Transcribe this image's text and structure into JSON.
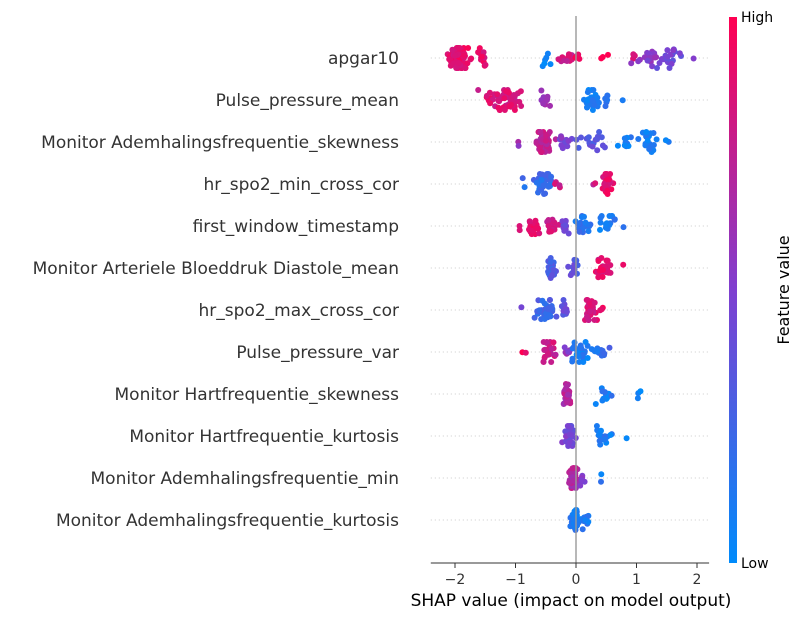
{
  "chart_data": {
    "type": "scatter",
    "subtype": "shap-beeswarm",
    "xlabel": "SHAP value (impact on model output)",
    "xlim": [
      -2.4,
      2.2
    ],
    "xticks": [
      {
        "value": -2,
        "label": "−2"
      },
      {
        "value": -1,
        "label": "−1"
      },
      {
        "value": 0,
        "label": "0"
      },
      {
        "value": 1,
        "label": "1"
      },
      {
        "value": 2,
        "label": "2"
      }
    ],
    "colorbar": {
      "title": "Feature value",
      "high_label": "High",
      "low_label": "Low",
      "high_color": "#ff0052",
      "mid_color": "#7f3fd0",
      "low_color": "#008bfb"
    },
    "features": [
      {
        "name": "apgar10",
        "clusters": [
          {
            "center": -1.95,
            "spread": 0.15,
            "count": 80,
            "value": 0.9
          },
          {
            "center": -1.55,
            "spread": 0.08,
            "count": 14,
            "value": 0.88
          },
          {
            "center": -0.5,
            "spread": 0.06,
            "count": 6,
            "value": 0.05
          },
          {
            "center": -0.15,
            "spread": 0.15,
            "count": 12,
            "value": 0.8
          },
          {
            "center": 0.05,
            "spread": 0.1,
            "count": 6,
            "value": 0.92
          },
          {
            "center": 0.45,
            "spread": 0.05,
            "count": 3,
            "value": 0.95
          },
          {
            "center": 0.95,
            "spread": 0.05,
            "count": 4,
            "value": 0.9
          },
          {
            "center": 1.2,
            "spread": 0.15,
            "count": 18,
            "value": 0.55
          },
          {
            "center": 1.55,
            "spread": 0.15,
            "count": 22,
            "value": 0.45
          },
          {
            "center": 1.95,
            "spread": 0.03,
            "count": 1,
            "value": 0.5
          }
        ]
      },
      {
        "name": "Pulse_pressure_mean",
        "clusters": [
          {
            "center": -1.45,
            "spread": 0.06,
            "count": 4,
            "value": 0.9
          },
          {
            "center": -1.15,
            "spread": 0.25,
            "count": 55,
            "value": 0.85
          },
          {
            "center": -0.55,
            "spread": 0.1,
            "count": 10,
            "value": 0.65
          },
          {
            "center": 0.25,
            "spread": 0.1,
            "count": 38,
            "value": 0.1
          },
          {
            "center": 0.5,
            "spread": 0.06,
            "count": 6,
            "value": 0.15
          },
          {
            "center": 0.78,
            "spread": 0.02,
            "count": 1,
            "value": 0.05
          }
        ]
      },
      {
        "name": "Monitor Ademhalingsfrequentie_skewness",
        "clusters": [
          {
            "center": -0.95,
            "spread": 0.03,
            "count": 2,
            "value": 0.6
          },
          {
            "center": -0.55,
            "spread": 0.12,
            "count": 55,
            "value": 0.75
          },
          {
            "center": -0.2,
            "spread": 0.1,
            "count": 14,
            "value": 0.5
          },
          {
            "center": 0.3,
            "spread": 0.25,
            "count": 18,
            "value": 0.35
          },
          {
            "center": 0.85,
            "spread": 0.1,
            "count": 10,
            "value": 0.1
          },
          {
            "center": 1.2,
            "spread": 0.15,
            "count": 22,
            "value": 0.08
          },
          {
            "center": 1.52,
            "spread": 0.03,
            "count": 2,
            "value": 0.1
          }
        ]
      },
      {
        "name": "hr_spo2_min_cross_cor",
        "clusters": [
          {
            "center": -0.85,
            "spread": 0.03,
            "count": 1,
            "value": 0.2
          },
          {
            "center": -0.55,
            "spread": 0.15,
            "count": 45,
            "value": 0.2
          },
          {
            "center": -0.35,
            "spread": 0.06,
            "count": 4,
            "value": 0.8
          },
          {
            "center": 0.3,
            "spread": 0.06,
            "count": 2,
            "value": 0.8
          },
          {
            "center": 0.5,
            "spread": 0.1,
            "count": 30,
            "value": 0.88
          }
        ]
      },
      {
        "name": "first_window_timestamp",
        "clusters": [
          {
            "center": -0.95,
            "spread": 0.03,
            "count": 2,
            "value": 0.9
          },
          {
            "center": -0.7,
            "spread": 0.1,
            "count": 20,
            "value": 0.9
          },
          {
            "center": -0.4,
            "spread": 0.08,
            "count": 18,
            "value": 0.8
          },
          {
            "center": -0.18,
            "spread": 0.06,
            "count": 14,
            "value": 0.45
          },
          {
            "center": 0.1,
            "spread": 0.12,
            "count": 22,
            "value": 0.15
          },
          {
            "center": 0.5,
            "spread": 0.12,
            "count": 16,
            "value": 0.1
          },
          {
            "center": 0.78,
            "spread": 0.02,
            "count": 1,
            "value": 0.1
          }
        ]
      },
      {
        "name": "Monitor Arteriele Bloeddruk Diastole_mean",
        "clusters": [
          {
            "center": -0.4,
            "spread": 0.1,
            "count": 30,
            "value": 0.3
          },
          {
            "center": -0.05,
            "spread": 0.08,
            "count": 14,
            "value": 0.35
          },
          {
            "center": 0.45,
            "spread": 0.12,
            "count": 28,
            "value": 0.88
          },
          {
            "center": 0.78,
            "spread": 0.02,
            "count": 1,
            "value": 0.9
          }
        ]
      },
      {
        "name": "hr_spo2_max_cross_cor",
        "clusters": [
          {
            "center": -0.9,
            "spread": 0.03,
            "count": 1,
            "value": 0.4
          },
          {
            "center": -0.5,
            "spread": 0.15,
            "count": 35,
            "value": 0.25
          },
          {
            "center": -0.2,
            "spread": 0.08,
            "count": 10,
            "value": 0.4
          },
          {
            "center": 0.25,
            "spread": 0.12,
            "count": 32,
            "value": 0.85
          },
          {
            "center": 0.45,
            "spread": 0.03,
            "count": 2,
            "value": 0.9
          }
        ]
      },
      {
        "name": "Pulse_pressure_var",
        "clusters": [
          {
            "center": -0.85,
            "spread": 0.04,
            "count": 2,
            "value": 0.95
          },
          {
            "center": -0.45,
            "spread": 0.1,
            "count": 26,
            "value": 0.8
          },
          {
            "center": -0.15,
            "spread": 0.05,
            "count": 6,
            "value": 0.55
          },
          {
            "center": 0.05,
            "spread": 0.12,
            "count": 30,
            "value": 0.1
          },
          {
            "center": 0.4,
            "spread": 0.08,
            "count": 12,
            "value": 0.15
          },
          {
            "center": 0.55,
            "spread": 0.03,
            "count": 1,
            "value": 0.3
          }
        ]
      },
      {
        "name": "Monitor Hartfrequentie_skewness",
        "clusters": [
          {
            "center": -0.15,
            "spread": 0.06,
            "count": 28,
            "value": 0.7
          },
          {
            "center": 0.5,
            "spread": 0.15,
            "count": 14,
            "value": 0.1
          },
          {
            "center": 1.05,
            "spread": 0.05,
            "count": 3,
            "value": 0.05
          }
        ]
      },
      {
        "name": "Monitor Hartfrequentie_kurtosis",
        "clusters": [
          {
            "center": -0.1,
            "spread": 0.07,
            "count": 38,
            "value": 0.45
          },
          {
            "center": 0.45,
            "spread": 0.15,
            "count": 18,
            "value": 0.1
          },
          {
            "center": 0.85,
            "spread": 0.02,
            "count": 1,
            "value": 0.1
          }
        ]
      },
      {
        "name": "Monitor Ademhalingsfrequentie_min",
        "clusters": [
          {
            "center": -0.05,
            "spread": 0.08,
            "count": 40,
            "value": 0.7
          },
          {
            "center": 0.1,
            "spread": 0.05,
            "count": 8,
            "value": 0.5
          },
          {
            "center": 0.42,
            "spread": 0.03,
            "count": 2,
            "value": 0.1
          }
        ]
      },
      {
        "name": "Monitor Ademhalingsfrequentie_kurtosis",
        "clusters": [
          {
            "center": 0.0,
            "spread": 0.07,
            "count": 40,
            "value": 0.12
          },
          {
            "center": 0.15,
            "spread": 0.06,
            "count": 12,
            "value": 0.1
          }
        ]
      }
    ]
  }
}
